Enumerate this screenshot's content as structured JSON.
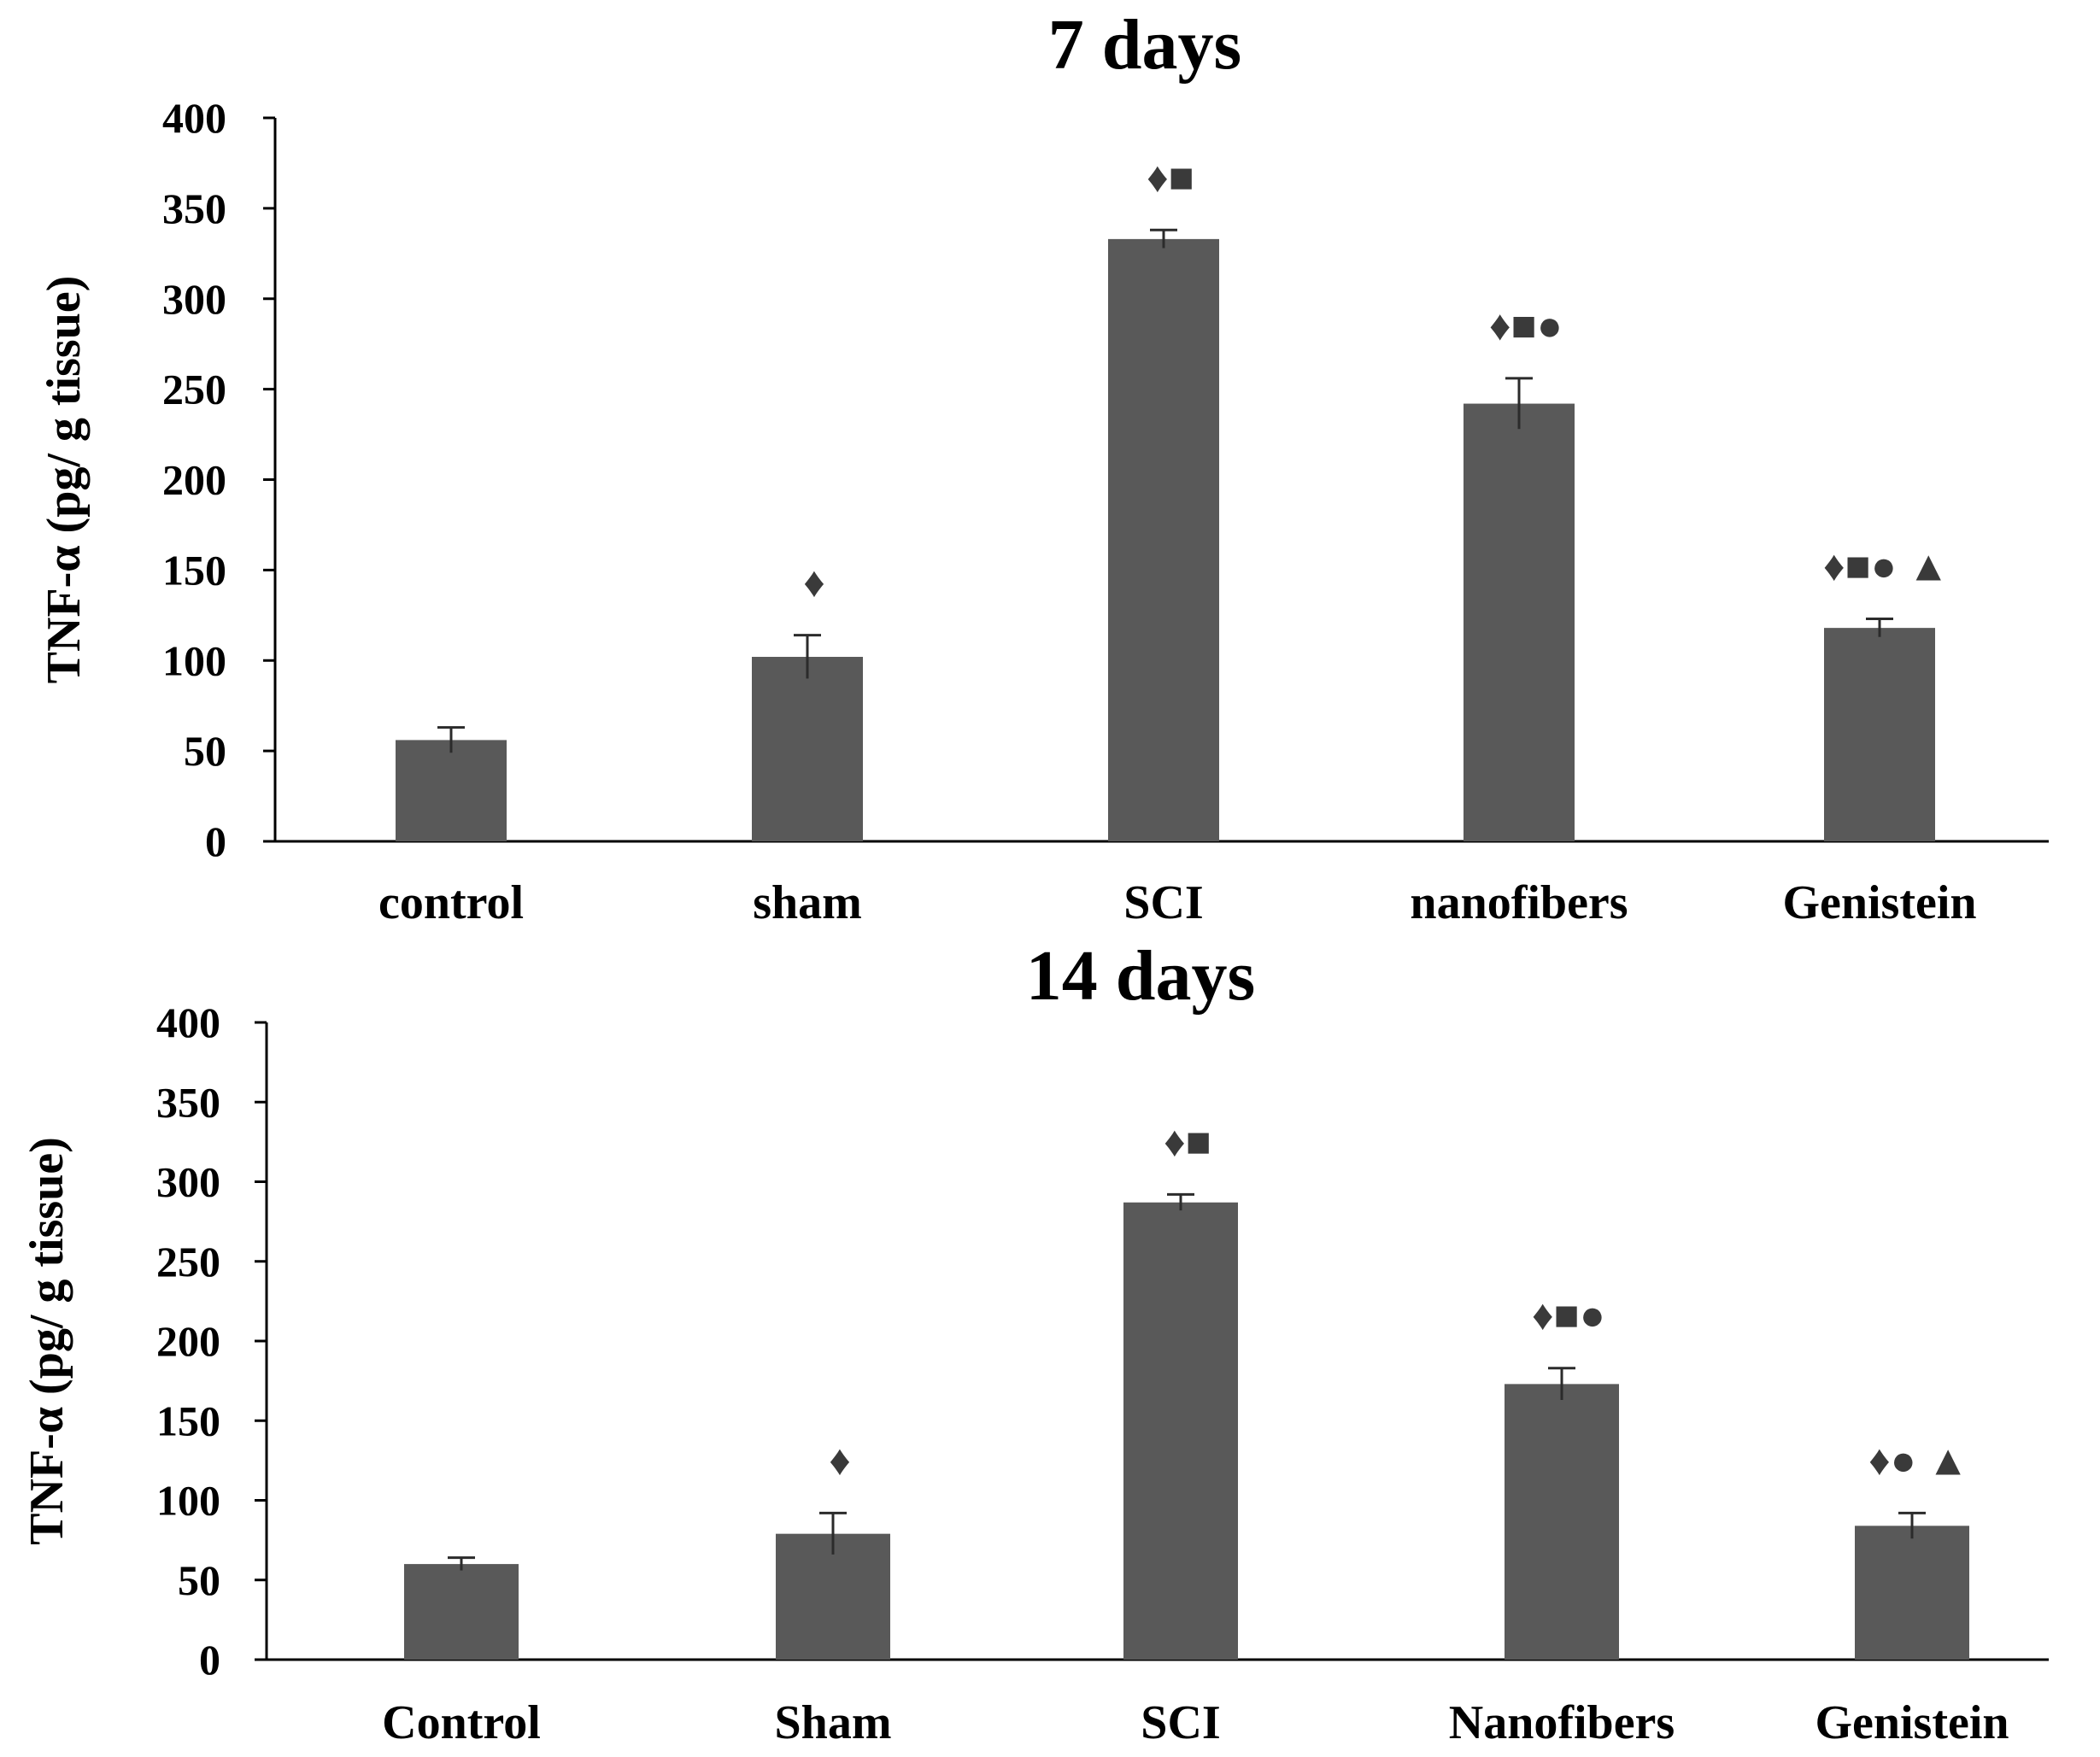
{
  "colors": {
    "bar": "#595959",
    "axis": "#000000",
    "marker": "#3a3a3a"
  },
  "chart_data": [
    {
      "type": "bar",
      "title": "7 days",
      "xlabel": "",
      "ylabel": "TNF-α (pg/ g tissue)",
      "ylim": [
        0,
        400
      ],
      "yticks": [
        0,
        50,
        100,
        150,
        200,
        250,
        300,
        350,
        400
      ],
      "categories": [
        "control",
        "sham",
        "SCI",
        "nanofibers",
        "Genistein"
      ],
      "values": [
        56,
        102,
        333,
        242,
        118
      ],
      "errors": [
        7,
        12,
        5,
        14,
        5
      ],
      "annotations": [
        "",
        "♦",
        "♦■",
        "♦■●",
        "♦■● ▲"
      ]
    },
    {
      "type": "bar",
      "title": "14 days",
      "xlabel": "",
      "ylabel": "TNF-α (pg/ g tissue)",
      "ylim": [
        0,
        400
      ],
      "yticks": [
        0,
        50,
        100,
        150,
        200,
        250,
        300,
        350,
        400
      ],
      "categories": [
        "Control",
        "Sham",
        "SCI",
        "Nanofibers",
        "Genistein"
      ],
      "values": [
        60,
        79,
        287,
        173,
        84
      ],
      "errors": [
        4,
        13,
        5,
        10,
        8
      ],
      "annotations": [
        "",
        "♦",
        "♦■",
        "♦■●",
        "♦● ▲"
      ]
    }
  ]
}
